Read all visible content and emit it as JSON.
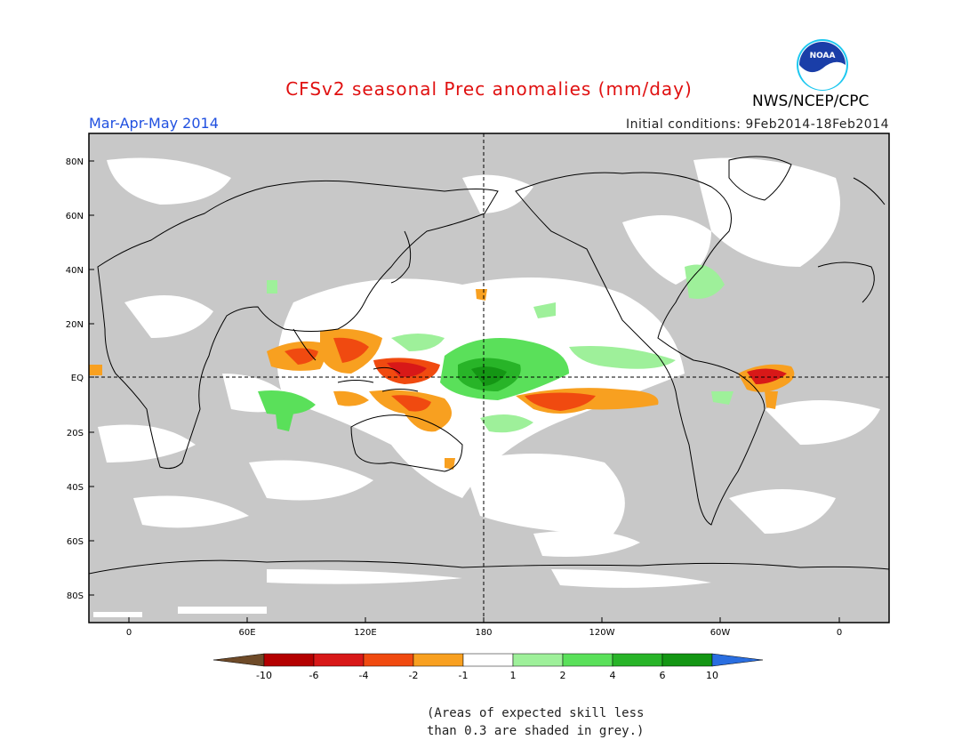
{
  "header": {
    "title": "CFSv2 seasonal Prec anomalies (mm/day)",
    "season": "Mar-Apr-May 2014",
    "initial_conditions": "Initial conditions: 9Feb2014-18Feb2014",
    "agency": "NWS/NCEP/CPC",
    "logo_text": "NOAA"
  },
  "map": {
    "lat_labels": [
      "80N",
      "60N",
      "40N",
      "20N",
      "EQ",
      "20S",
      "40S",
      "60S",
      "80S"
    ],
    "lon_labels": [
      "0",
      "60E",
      "120E",
      "180",
      "120W",
      "60W",
      "0"
    ],
    "colors": {
      "skill_grey": "#c8c8c8",
      "coast": "#000000"
    }
  },
  "legend": {
    "labels": [
      "-10",
      "-6",
      "-4",
      "-2",
      "-1",
      "1",
      "2",
      "4",
      "6",
      "10"
    ],
    "colors": [
      "#6e4a28",
      "#b40000",
      "#d81818",
      "#f04a10",
      "#f8a020",
      "#ffffff",
      "#9ef09a",
      "#5ae05a",
      "#28b428",
      "#149614",
      "#2a6ee0"
    ]
  },
  "note": {
    "line1": "(Areas of expected skill less",
    "line2": "than 0.3 are shaded in grey.)"
  }
}
